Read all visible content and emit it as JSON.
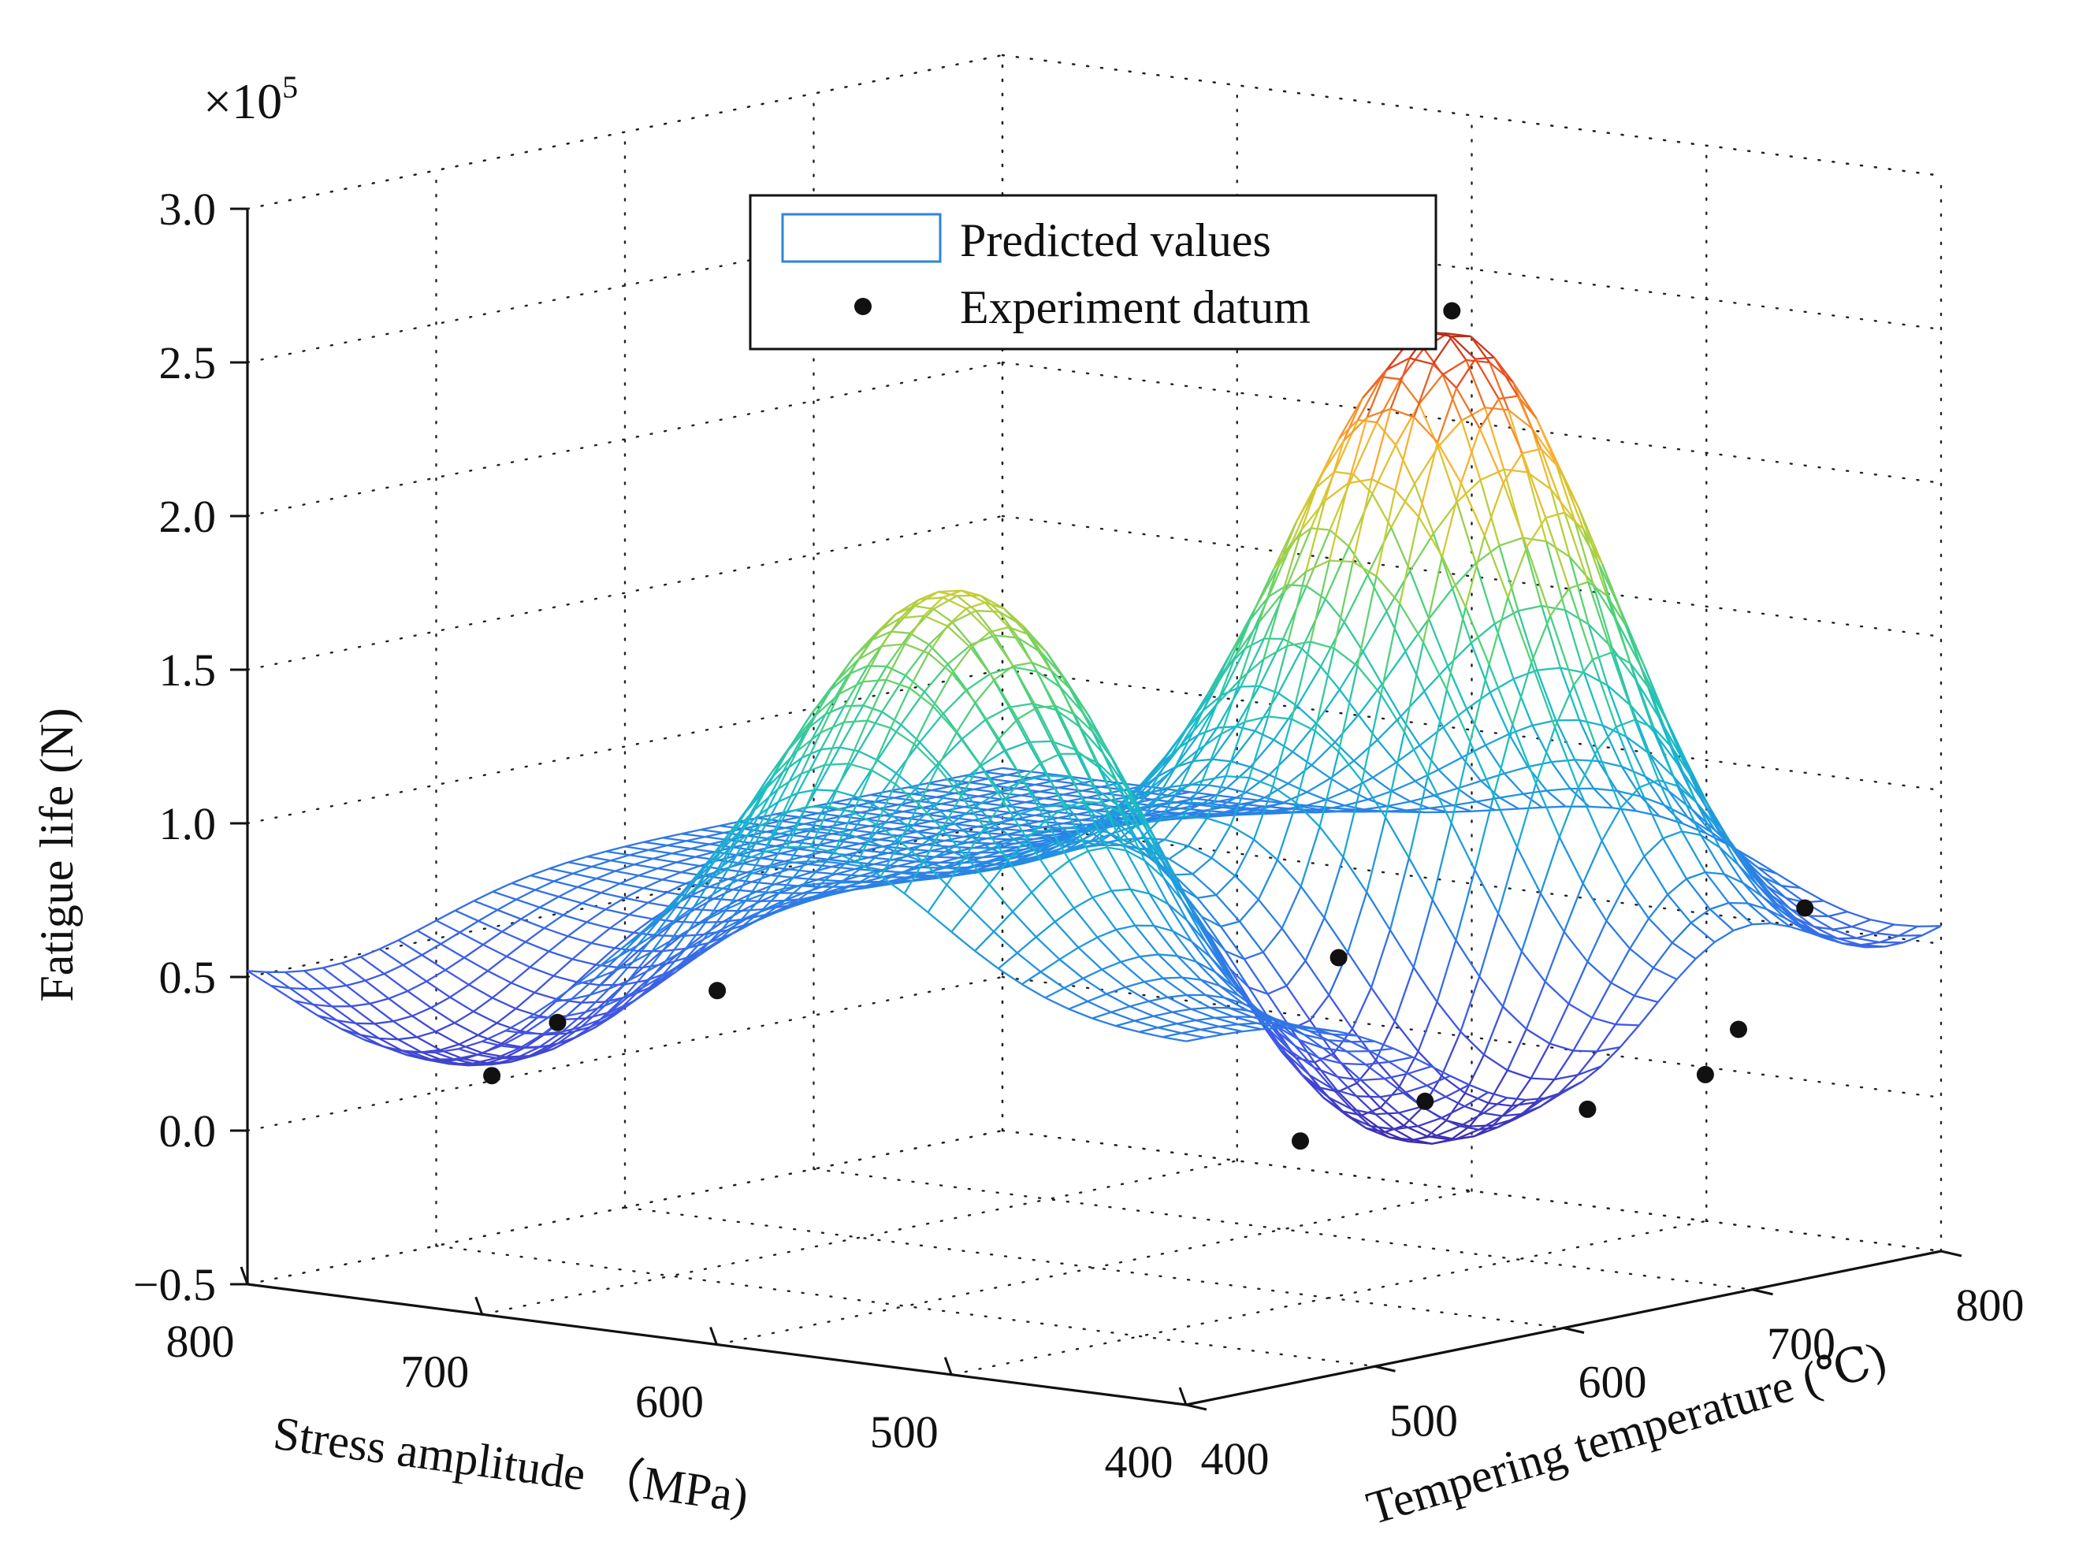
{
  "chart_data": {
    "type": "surface3d",
    "title": "",
    "z_scale_label": {
      "base": "×10",
      "exponent": "5"
    },
    "xlabel": "Stress amplitude （MPa)",
    "ylabel": "Tempering temperature (℃)",
    "zlabel": "Fatigue life (N)",
    "x_range": [
      400,
      800
    ],
    "y_range": [
      400,
      800
    ],
    "z_range": [
      -0.5,
      3.0
    ],
    "x_ticks": [
      {
        "value": 800,
        "label": "800"
      },
      {
        "value": 700,
        "label": "700"
      },
      {
        "value": 600,
        "label": "600"
      },
      {
        "value": 500,
        "label": "500"
      },
      {
        "value": 400,
        "label": "400"
      }
    ],
    "y_ticks": [
      {
        "value": 400,
        "label": "400"
      },
      {
        "value": 500,
        "label": "500"
      },
      {
        "value": 600,
        "label": "600"
      },
      {
        "value": 700,
        "label": "700"
      },
      {
        "value": 800,
        "label": "800"
      }
    ],
    "z_ticks": [
      {
        "value": -0.5,
        "label": "−0.5"
      },
      {
        "value": 0.0,
        "label": "0.0"
      },
      {
        "value": 0.5,
        "label": "0.5"
      },
      {
        "value": 1.0,
        "label": "1.0"
      },
      {
        "value": 1.5,
        "label": "1.5"
      },
      {
        "value": 2.0,
        "label": "2.0"
      },
      {
        "value": 2.5,
        "label": "2.5"
      },
      {
        "value": 3.0,
        "label": "3.0"
      }
    ],
    "grid": true,
    "colormap": "parula",
    "legend": {
      "placement": "top-center",
      "entries": [
        {
          "label": "Predicted values",
          "marker": "mesh-swatch"
        },
        {
          "label": "Experiment datum",
          "marker": "dot"
        }
      ]
    },
    "surface_model": {
      "baseline": 0.68,
      "peaks": [
        {
          "x": 560,
          "y": 480,
          "height": 1.25,
          "spread_x": 55,
          "spread_y": 58
        },
        {
          "x": 520,
          "y": 690,
          "height": 2.0,
          "spread_x": 58,
          "spread_y": 48
        },
        {
          "x": 460,
          "y": 600,
          "height": -0.75,
          "spread_x": 60,
          "spread_y": 65
        },
        {
          "x": 730,
          "y": 440,
          "height": -0.45,
          "spread_x": 55,
          "spread_y": 60
        },
        {
          "x": 430,
          "y": 760,
          "height": -0.25,
          "spread_x": 45,
          "spread_y": 45
        }
      ]
    },
    "series": [
      {
        "name": "Experiment datum",
        "points": [
          {
            "x": 720,
            "y": 430,
            "z": 0.22
          },
          {
            "x": 700,
            "y": 440,
            "z": 0.4
          },
          {
            "x": 640,
            "y": 450,
            "z": 0.55
          },
          {
            "x": 480,
            "y": 560,
            "z": 0.08
          },
          {
            "x": 455,
            "y": 595,
            "z": 0.19
          },
          {
            "x": 520,
            "y": 630,
            "z": 0.55
          },
          {
            "x": 430,
            "y": 650,
            "z": 0.12
          },
          {
            "x": 520,
            "y": 690,
            "z": 2.58
          },
          {
            "x": 420,
            "y": 700,
            "z": 0.18
          },
          {
            "x": 430,
            "y": 730,
            "z": 0.28
          },
          {
            "x": 450,
            "y": 790,
            "z": 0.58
          }
        ]
      }
    ]
  }
}
